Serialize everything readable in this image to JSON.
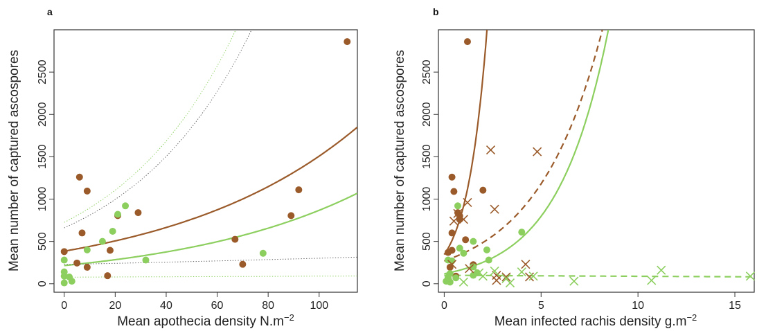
{
  "colors": {
    "brown": "#9a5a2a",
    "green": "#8ccf5f",
    "grey": "#666666"
  },
  "chart_data": [
    {
      "panel": "a",
      "type": "scatter",
      "xlabel": "Mean apothecia density N.m",
      "xlabel_sup": "−2",
      "ylabel": "Mean number of captured ascospores",
      "xlim": [
        -4,
        115
      ],
      "ylim": [
        -100,
        3000
      ],
      "xticks": [
        0,
        20,
        40,
        60,
        80,
        100
      ],
      "xtick_labels": [
        "0",
        "20",
        "40",
        "60",
        "80",
        "100"
      ],
      "yticks": [
        0,
        500,
        1000,
        1500,
        2000,
        2500
      ],
      "ytick_labels": [
        "0",
        "500",
        "1000",
        "1500",
        "2000",
        "2500"
      ],
      "series": [
        {
          "color": "brown",
          "marker": "circle",
          "points": [
            [
              0,
              380
            ],
            [
              5,
              245
            ],
            [
              6,
              1260
            ],
            [
              7,
              600
            ],
            [
              9,
              1095
            ],
            [
              9,
              195
            ],
            [
              17,
              95
            ],
            [
              18,
              395
            ],
            [
              21,
              805
            ],
            [
              29,
              840
            ],
            [
              67,
              525
            ],
            [
              70,
              230
            ],
            [
              89,
              805
            ],
            [
              92,
              1110
            ],
            [
              111,
              2860
            ]
          ]
        },
        {
          "color": "green",
          "marker": "circle",
          "points": [
            [
              0,
              280
            ],
            [
              0,
              140
            ],
            [
              0,
              90
            ],
            [
              0,
              10
            ],
            [
              2,
              80
            ],
            [
              3,
              30
            ],
            [
              9,
              400
            ],
            [
              15,
              500
            ],
            [
              19,
              620
            ],
            [
              21,
              820
            ],
            [
              24,
              920
            ],
            [
              32,
              280
            ],
            [
              78,
              360
            ]
          ]
        }
      ],
      "fits": [
        {
          "color": "brown",
          "style": "solid",
          "a": 385,
          "b": 0.01365
        },
        {
          "color": "green",
          "style": "solid",
          "a": 215,
          "b": 0.01395
        },
        {
          "color": "grey",
          "style": "dotted",
          "a": 660,
          "b": 0.0206
        },
        {
          "color": "green",
          "style": "dotted",
          "a": 725,
          "b": 0.0211
        },
        {
          "color": "grey",
          "style": "dotted",
          "a": 228,
          "b": 0.0028
        },
        {
          "color": "green",
          "style": "dotted",
          "a": 78,
          "b": 0.0014
        }
      ]
    },
    {
      "panel": "b",
      "type": "scatter",
      "xlabel": "Mean infected rachis density g.m",
      "xlabel_sup": "−2",
      "ylabel": "Mean number of captured ascospores",
      "xlim": [
        -0.3,
        16
      ],
      "ylim": [
        -100,
        3000
      ],
      "xticks": [
        0,
        5,
        10,
        15
      ],
      "xtick_labels": [
        "0",
        "5",
        "10",
        "15"
      ],
      "yticks": [
        0,
        500,
        1000,
        1500,
        2000,
        2500
      ],
      "ytick_labels": [
        "0",
        "500",
        "1000",
        "1500",
        "2000",
        "2500"
      ],
      "series": [
        {
          "color": "brown",
          "marker": "circle",
          "points": [
            [
              0.2,
              370
            ],
            [
              0.4,
              1260
            ],
            [
              0.4,
              600
            ],
            [
              0.4,
              395
            ],
            [
              0.5,
              1090
            ],
            [
              0.6,
              90
            ],
            [
              0.7,
              840
            ],
            [
              0.8,
              800
            ],
            [
              0.8,
              760
            ],
            [
              1.1,
              520
            ],
            [
              1.2,
              2860
            ],
            [
              1.5,
              225
            ],
            [
              2.0,
              1105
            ],
            [
              0.3,
              195
            ],
            [
              0.2,
              60
            ]
          ]
        },
        {
          "color": "green",
          "marker": "circle",
          "points": [
            [
              0.1,
              30
            ],
            [
              0.2,
              80
            ],
            [
              0.2,
              280
            ],
            [
              0.3,
              120
            ],
            [
              0.3,
              20
            ],
            [
              0.4,
              270
            ],
            [
              0.6,
              70
            ],
            [
              0.7,
              920
            ],
            [
              0.8,
              420
            ],
            [
              1.0,
              360
            ],
            [
              1.5,
              500
            ],
            [
              1.5,
              200
            ],
            [
              1.5,
              100
            ],
            [
              1.7,
              130
            ],
            [
              2.2,
              400
            ],
            [
              2.3,
              280
            ],
            [
              4.0,
              610
            ]
          ]
        },
        {
          "color": "brown",
          "marker": "x",
          "points": [
            [
              0.4,
              230
            ],
            [
              0.5,
              740
            ],
            [
              0.7,
              830
            ],
            [
              1.0,
              760
            ],
            [
              1.2,
              960
            ],
            [
              1.3,
              180
            ],
            [
              2.4,
              1580
            ],
            [
              2.6,
              880
            ],
            [
              2.7,
              100
            ],
            [
              2.7,
              40
            ],
            [
              3.2,
              80
            ],
            [
              4.2,
              230
            ],
            [
              4.4,
              80
            ],
            [
              4.8,
              1560
            ]
          ]
        },
        {
          "color": "green",
          "marker": "x",
          "points": [
            [
              1.0,
              20
            ],
            [
              1.8,
              130
            ],
            [
              2.0,
              90
            ],
            [
              2.6,
              150
            ],
            [
              3.2,
              60
            ],
            [
              3.4,
              10
            ],
            [
              4.0,
              140
            ],
            [
              4.6,
              90
            ],
            [
              6.7,
              30
            ],
            [
              10.7,
              40
            ],
            [
              11.2,
              160
            ],
            [
              15.8,
              90
            ]
          ]
        }
      ],
      "fits": [
        {
          "color": "brown",
          "style": "solid",
          "a": 345,
          "b": 0.98
        },
        {
          "color": "green",
          "style": "solid",
          "a": 118,
          "b": 0.382
        },
        {
          "color": "brown",
          "style": "dashed",
          "a": 270,
          "b": 0.295
        },
        {
          "color": "green",
          "style": "dashed",
          "a": 100,
          "b": -0.0125
        }
      ]
    }
  ]
}
